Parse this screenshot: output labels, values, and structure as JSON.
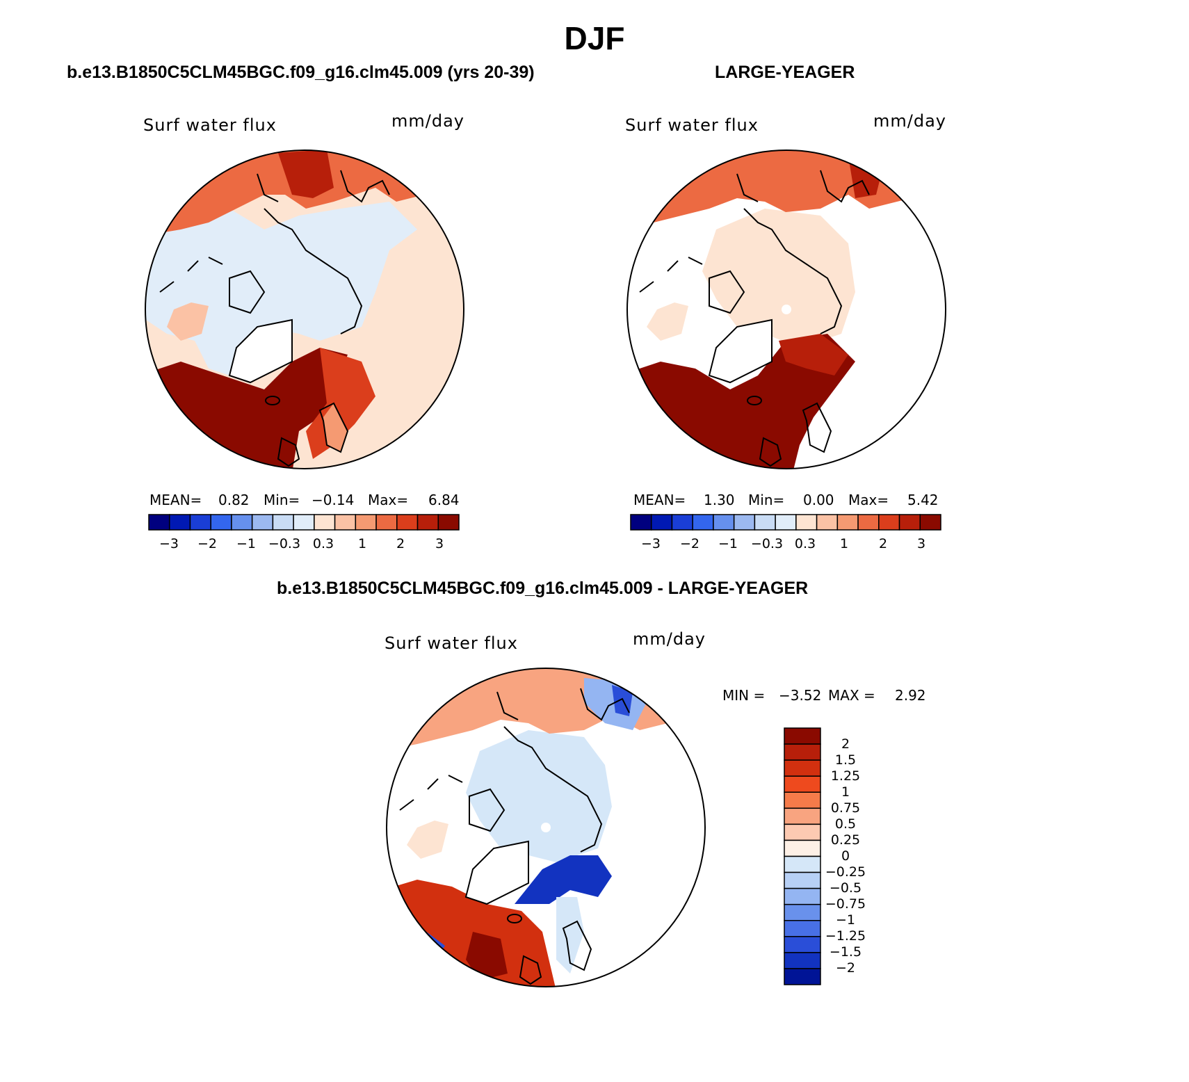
{
  "figure": {
    "title": "DJF",
    "panels": [
      {
        "title": "b.e13.B1850C5CLM45BGC.f09_g16.clm45.009 (yrs 20-39)",
        "variable": "Surf water flux",
        "units": "mm/day",
        "stats": {
          "mean_label": "MEAN=",
          "mean": "0.82",
          "min_label": "Min=",
          "min": "−0.14",
          "max_label": "Max=",
          "max": "6.84"
        }
      },
      {
        "title": "LARGE-YEAGER",
        "variable": "Surf water flux",
        "units": "mm/day",
        "stats": {
          "mean_label": "MEAN=",
          "mean": "1.30",
          "min_label": "Min=",
          "min": "0.00",
          "max_label": "Max=",
          "max": "5.42"
        }
      },
      {
        "title": "b.e13.B1850C5CLM45BGC.f09_g16.clm45.009 - LARGE-YEAGER",
        "variable": "Surf water flux",
        "units": "mm/day",
        "stats": {
          "min_label": "MIN =",
          "min": "−3.52",
          "max_label": "MAX =",
          "max": "2.92"
        }
      }
    ]
  },
  "colorbars": {
    "horizontal": {
      "colors": [
        "#00007f",
        "#0019b3",
        "#1a3ed6",
        "#3366ee",
        "#6690ee",
        "#9cb9f0",
        "#c9dcf5",
        "#e1edf9",
        "#fde4d2",
        "#fbc2a5",
        "#f59a72",
        "#ec6a42",
        "#db3e1c",
        "#b71f0a",
        "#8a0a00"
      ],
      "tick_labels": [
        "−3",
        "−2",
        "−1",
        "−0.3",
        "0.3",
        "1",
        "2",
        "3"
      ]
    },
    "vertical": {
      "colors": [
        "#8a0a00",
        "#b71f0a",
        "#d2300f",
        "#ee4a1e",
        "#f57b4a",
        "#f8a480",
        "#fccab2",
        "#fdf0e6",
        "#d5e7f8",
        "#b7d0f5",
        "#94b5f2",
        "#6991ec",
        "#4870e6",
        "#2a4ed8",
        "#1233c0",
        "#001496"
      ],
      "tick_labels": [
        "2",
        "1.5",
        "1.25",
        "1",
        "0.75",
        "0.5",
        "0.25",
        "0",
        "−0.25",
        "−0.5",
        "−0.75",
        "−1",
        "−1.25",
        "−1.5",
        "−2"
      ]
    }
  }
}
